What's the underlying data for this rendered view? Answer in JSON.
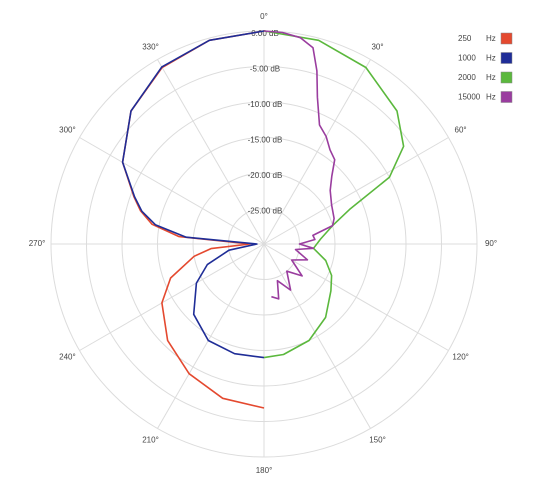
{
  "chart_data": {
    "type": "polar",
    "rlim": [
      -30,
      0
    ],
    "rticks": [
      {
        "value": -25,
        "label": "-25.00 dB"
      },
      {
        "value": -20,
        "label": "-20.00 dB"
      },
      {
        "value": -15,
        "label": "-15.00 dB"
      },
      {
        "value": -10,
        "label": "-10.00 dB"
      },
      {
        "value": -5,
        "label": "-5.00 dB"
      },
      {
        "value": 0,
        "label": "0.00 dB"
      }
    ],
    "angle_ticks": [
      {
        "value": 0,
        "label": "0°"
      },
      {
        "value": 30,
        "label": "30°"
      },
      {
        "value": 60,
        "label": "60°"
      },
      {
        "value": 90,
        "label": "90°"
      },
      {
        "value": 120,
        "label": "120°"
      },
      {
        "value": 150,
        "label": "150°"
      },
      {
        "value": 180,
        "label": "180°"
      },
      {
        "value": 210,
        "label": "210°"
      },
      {
        "value": 240,
        "label": "240°"
      },
      {
        "value": 270,
        "label": "270°"
      },
      {
        "value": 300,
        "label": "300°"
      },
      {
        "value": 330,
        "label": "330°"
      }
    ],
    "grid": true,
    "legend": "top-right",
    "unit": "Hz",
    "series": [
      {
        "name": "250",
        "color": "#e4492f",
        "theta": [
          180,
          195,
          210,
          225,
          240,
          250,
          260,
          265,
          270,
          275,
          280,
          285,
          290,
          300,
          315,
          330,
          345,
          360
        ],
        "values": [
          -6.9,
          -7.5,
          -8.9,
          -10.8,
          -13.4,
          -16,
          -20,
          -22.5,
          -28,
          -18,
          -14,
          -12,
          -10.5,
          -7,
          -3.5,
          -1.3,
          -0.3,
          0
        ]
      },
      {
        "name": "1000",
        "color": "#1f2d97",
        "theta": [
          180,
          195,
          210,
          225,
          240,
          250,
          260,
          270,
          275,
          280,
          285,
          290,
          300,
          315,
          330,
          345,
          360
        ],
        "values": [
          -14,
          -14,
          -14.3,
          -16,
          -19,
          -21.5,
          -25,
          -29,
          -19,
          -14.5,
          -12.2,
          -10.6,
          -7,
          -3.5,
          -1.2,
          -0.3,
          0
        ]
      },
      {
        "name": "2000",
        "color": "#5bb83d",
        "theta": [
          0,
          15,
          30,
          45,
          55,
          62,
          68,
          75,
          85,
          95,
          105,
          115,
          125,
          140,
          155,
          170,
          180
        ],
        "values": [
          0,
          -0.3,
          -1.3,
          -3.5,
          -6,
          -10,
          -17,
          -20,
          -22,
          -23,
          -21,
          -19.5,
          -18.5,
          -16.5,
          -15,
          -14.2,
          -14
        ]
      },
      {
        "name": "15000",
        "color": "#9a3d9f",
        "theta": [
          0,
          5,
          10,
          14,
          17,
          20,
          25,
          30,
          35,
          40,
          45,
          51,
          60,
          70,
          75,
          80,
          85,
          90,
          95,
          100,
          110,
          120,
          130,
          140,
          150,
          160,
          165,
          172
        ],
        "values": [
          0,
          -0.1,
          -0.5,
          -1.5,
          -4.5,
          -8,
          -11.5,
          -12.5,
          -13.8,
          -14.5,
          -16.5,
          -18,
          -19,
          -19.5,
          -20,
          -23,
          -22.8,
          -25,
          -23,
          -25.5,
          -23.5,
          -25.5,
          -23,
          -25,
          -22.5,
          -24.5,
          -22,
          -22.5
        ]
      }
    ]
  }
}
